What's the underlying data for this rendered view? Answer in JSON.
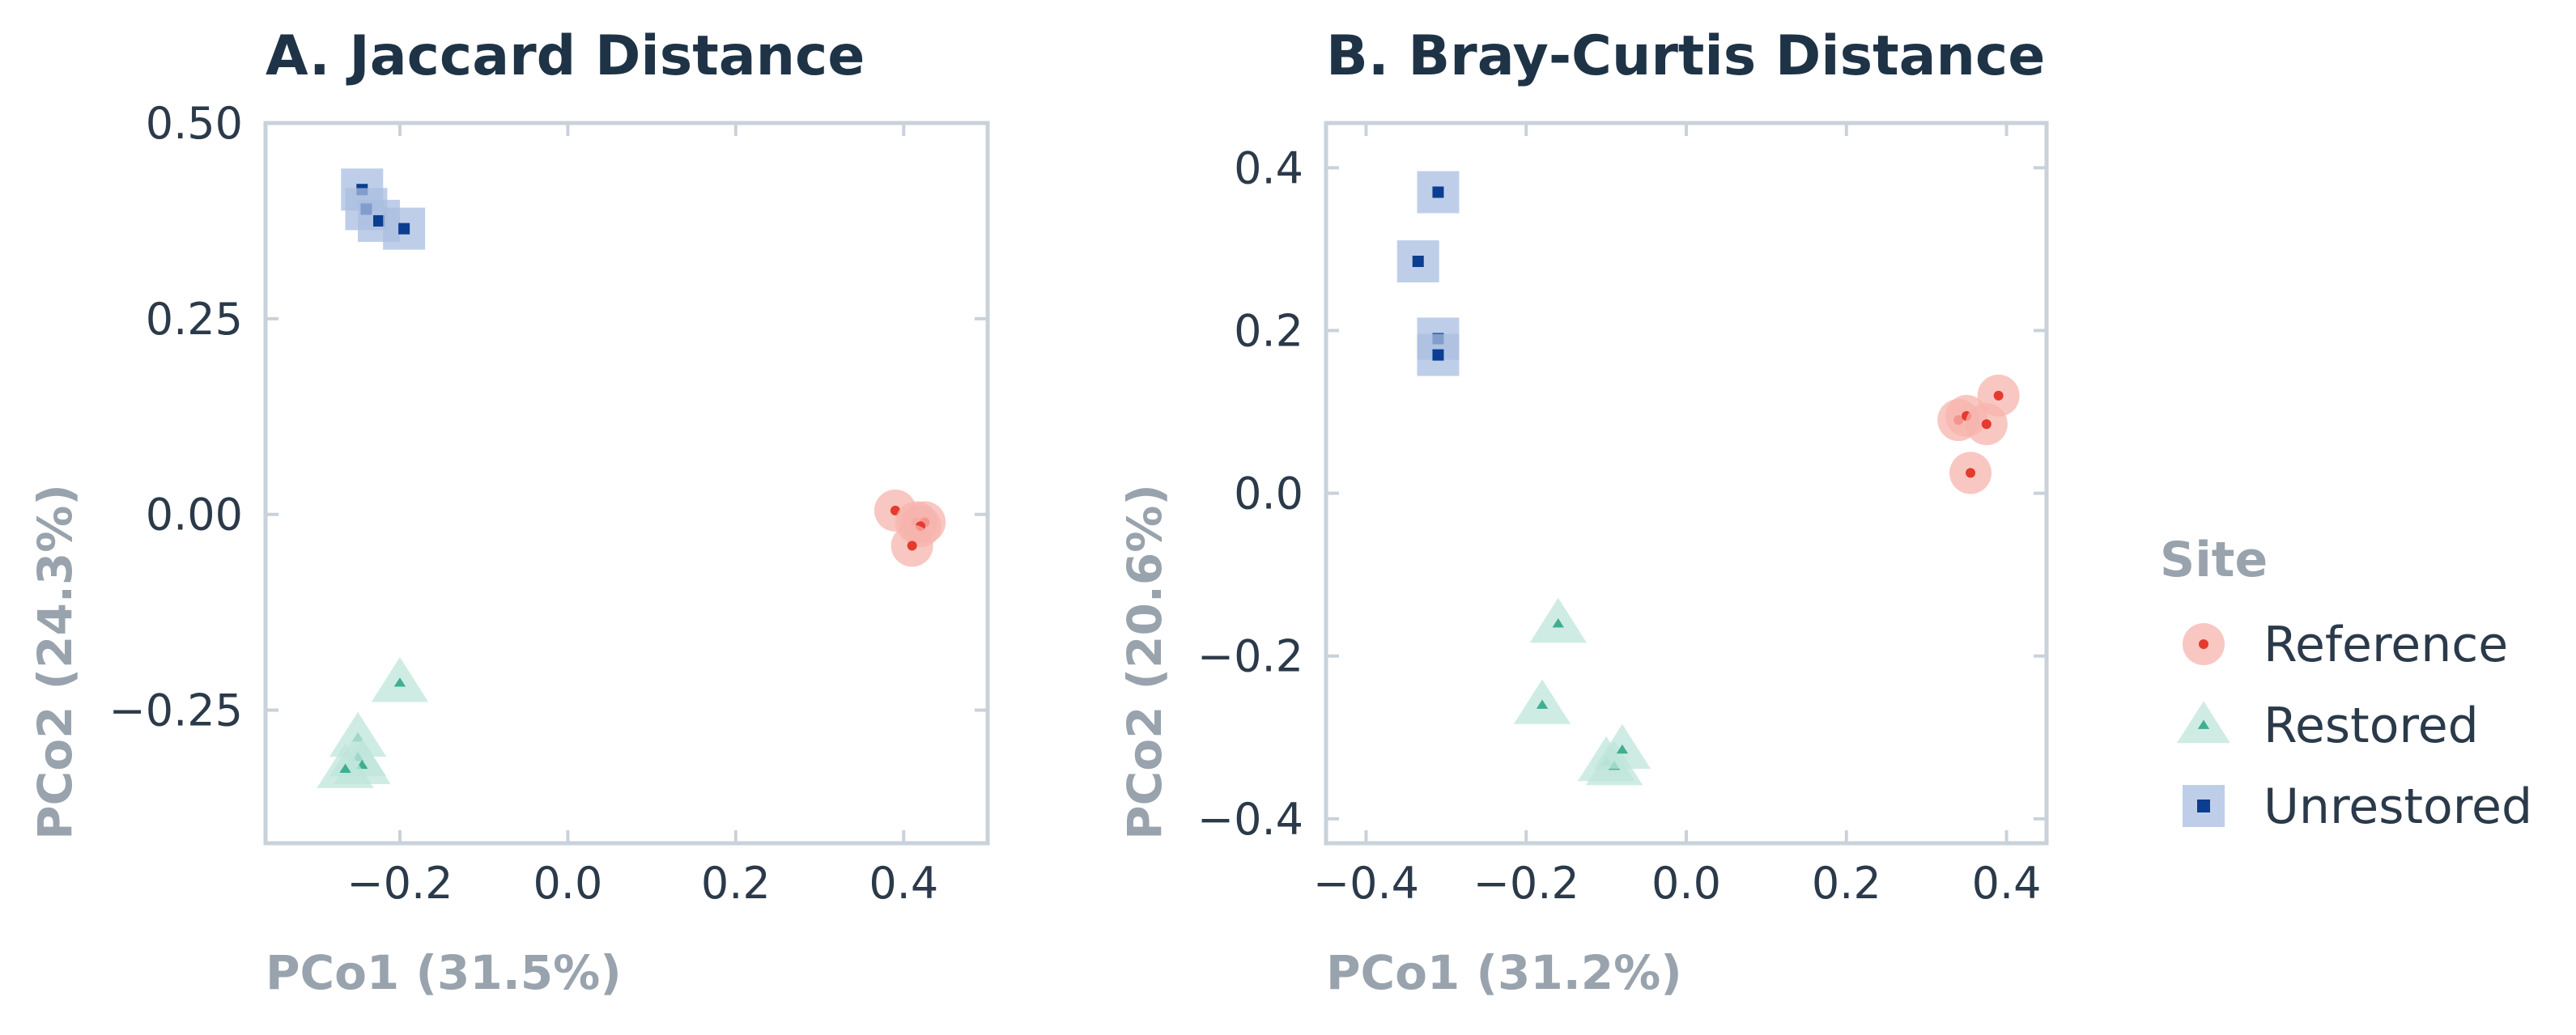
{
  "legend": {
    "title": "Site",
    "items": [
      {
        "label": "Reference",
        "shape": "circle",
        "color": "#e53a2e",
        "halo": "#f7b4ae"
      },
      {
        "label": "Restored",
        "shape": "triangle",
        "color": "#3fae91",
        "halo": "#bfe6db"
      },
      {
        "label": "Unrestored",
        "shape": "square",
        "color": "#0b3d91",
        "halo": "#a9bde0"
      }
    ]
  },
  "chart_data": [
    {
      "type": "scatter",
      "title": "A.  Jaccard Distance",
      "xlabel": "PCo1 (31.5%)",
      "ylabel": "PCo2 (24.3%)",
      "xlim": [
        -0.36,
        0.5
      ],
      "ylim": [
        -0.42,
        0.5
      ],
      "xticks": [
        -0.2,
        0.0,
        0.2,
        0.4
      ],
      "xtick_labels": [
        "−0.2",
        "0.0",
        "0.2",
        "0.4"
      ],
      "yticks": [
        -0.25,
        0.0,
        0.25,
        0.5
      ],
      "ytick_labels": [
        "−0.25",
        "0.00",
        "0.25",
        "0.50"
      ],
      "grid": false,
      "series": [
        {
          "name": "Reference",
          "points": [
            [
              0.39,
              0.005
            ],
            [
              0.415,
              -0.01
            ],
            [
              0.425,
              -0.01
            ],
            [
              0.42,
              -0.015
            ],
            [
              0.41,
              -0.04
            ]
          ]
        },
        {
          "name": "Restored",
          "points": [
            [
              -0.2,
              -0.215
            ],
            [
              -0.25,
              -0.285
            ],
            [
              -0.25,
              -0.31
            ],
            [
              -0.245,
              -0.32
            ],
            [
              -0.265,
              -0.325
            ]
          ]
        },
        {
          "name": "Unrestored",
          "points": [
            [
              -0.245,
              0.415
            ],
            [
              -0.24,
              0.39
            ],
            [
              -0.225,
              0.375
            ],
            [
              -0.195,
              0.365
            ]
          ]
        }
      ]
    },
    {
      "type": "scatter",
      "title": "B.  Bray-Curtis Distance",
      "xlabel": "PCo1 (31.2%)",
      "ylabel": "PCo2 (20.6%)",
      "xlim": [
        -0.45,
        0.45
      ],
      "ylim": [
        -0.43,
        0.455
      ],
      "xticks": [
        -0.4,
        -0.2,
        0.0,
        0.2,
        0.4
      ],
      "xtick_labels": [
        "−0.4",
        "−0.2",
        "0.0",
        "0.2",
        "0.4"
      ],
      "yticks": [
        -0.4,
        -0.2,
        0.0,
        0.2,
        0.4
      ],
      "ytick_labels": [
        "−0.4",
        "−0.2",
        "0.0",
        "0.2",
        "0.4"
      ],
      "grid": false,
      "series": [
        {
          "name": "Reference",
          "points": [
            [
              0.34,
              0.09
            ],
            [
              0.35,
              0.095
            ],
            [
              0.375,
              0.085
            ],
            [
              0.39,
              0.12
            ],
            [
              0.355,
              0.025
            ]
          ]
        },
        {
          "name": "Restored",
          "points": [
            [
              -0.16,
              -0.16
            ],
            [
              -0.18,
              -0.26
            ],
            [
              -0.1,
              -0.33
            ],
            [
              -0.09,
              -0.335
            ],
            [
              -0.08,
              -0.315
            ]
          ]
        },
        {
          "name": "Unrestored",
          "points": [
            [
              -0.31,
              0.37
            ],
            [
              -0.335,
              0.285
            ],
            [
              -0.31,
              0.19
            ],
            [
              -0.31,
              0.17
            ]
          ]
        }
      ]
    }
  ]
}
